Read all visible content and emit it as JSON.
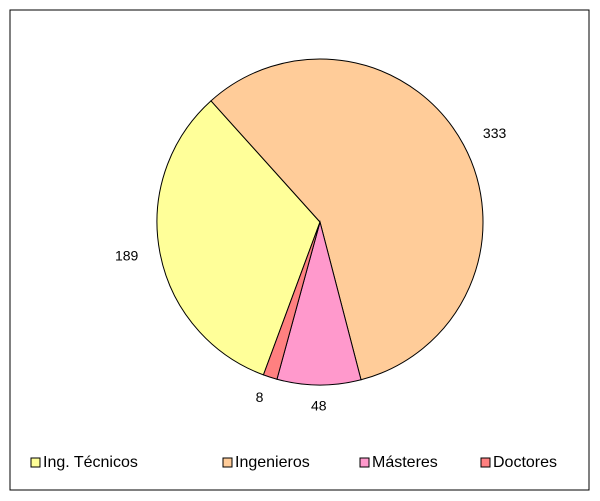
{
  "chart_data": {
    "type": "pie",
    "categories": [
      "Ing. Técnicos",
      "Ingenieros",
      "Másteres",
      "Doctores"
    ],
    "values": [
      189,
      333,
      48,
      8
    ],
    "colors": [
      "#ffff99",
      "#ffcc99",
      "#ff99cc",
      "#ff8080"
    ],
    "legend": "bottom"
  }
}
